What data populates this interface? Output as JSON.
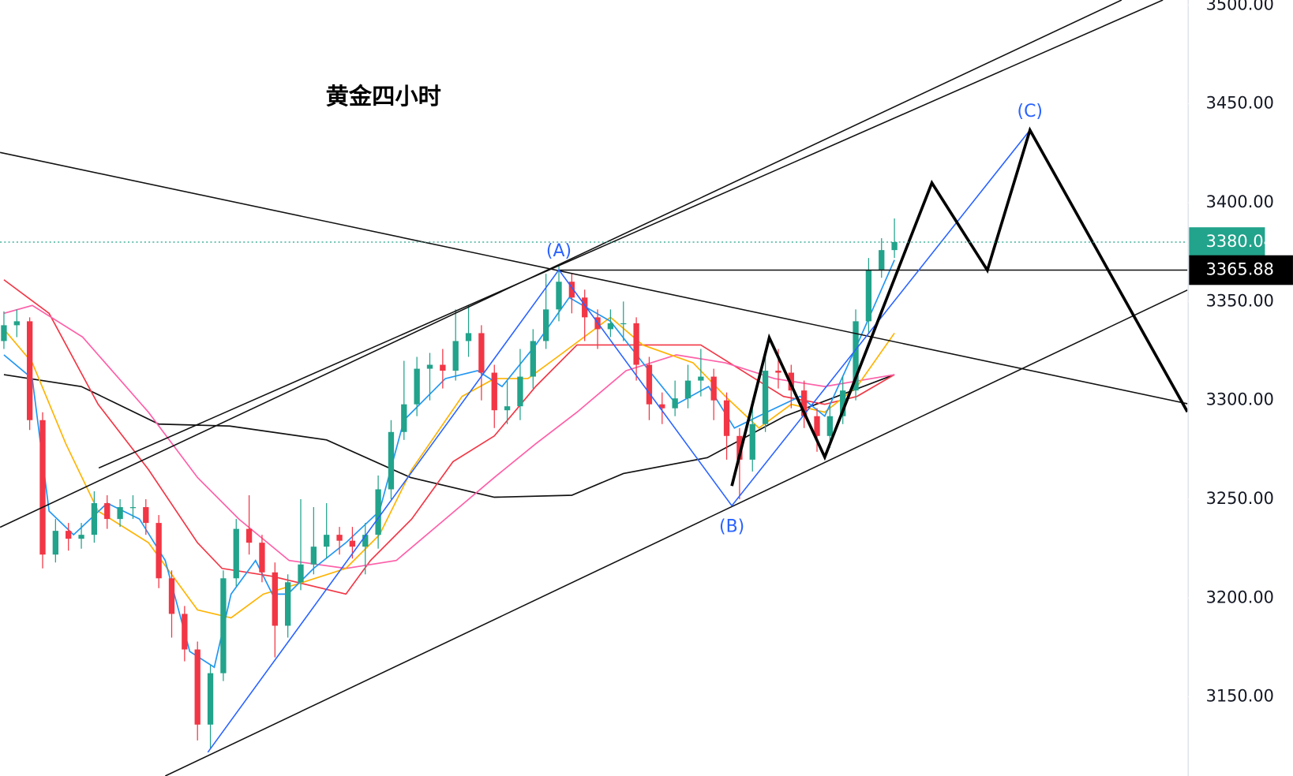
{
  "chart_data": {
    "type": "candlestick",
    "title": "黄金四小时",
    "ylim": [
      3110,
      3502.5
    ],
    "xlim": [
      -0.3,
      91.7
    ],
    "yticks": [
      {
        "value": 3150,
        "label": "3150.00"
      },
      {
        "value": 3200,
        "label": "3200.00"
      },
      {
        "value": 3250,
        "label": "3250.00"
      },
      {
        "value": 3300,
        "label": "3300.00"
      },
      {
        "value": 3350,
        "label": "3350.00"
      },
      {
        "value": 3400,
        "label": "3400.00"
      },
      {
        "value": 3450,
        "label": "3450.00"
      },
      {
        "value": 3500,
        "label": "3500.00"
      }
    ],
    "up_color": "#22a38b",
    "down_color": "#f23645",
    "candles": {
      "open": [
        3330,
        3338,
        3340,
        3290,
        3222,
        3234,
        3230,
        3232,
        3248,
        3240,
        3246,
        3246,
        3238,
        3210,
        3192,
        3174,
        3136,
        3162,
        3210,
        3235,
        3228,
        3213,
        3186,
        3208,
        3217,
        3226,
        3232,
        3229,
        3226,
        3232,
        3255,
        3284,
        3298,
        3316,
        3318,
        3315,
        3330,
        3334,
        3314,
        3295,
        3297,
        3312,
        3330,
        3346,
        3360,
        3352,
        3342,
        3336,
        3339,
        3339,
        3318,
        3298,
        3296,
        3301,
        3310,
        3312,
        3300,
        3282,
        3270,
        3288,
        3315,
        3314,
        3305,
        3292,
        3282,
        3292,
        3305,
        3340,
        3366,
        3376
      ],
      "high": [
        3345,
        3346,
        3342,
        3294,
        3240,
        3238,
        3238,
        3254,
        3252,
        3250,
        3252,
        3250,
        3242,
        3214,
        3196,
        3178,
        3166,
        3214,
        3240,
        3252,
        3232,
        3218,
        3212,
        3250,
        3246,
        3248,
        3236,
        3236,
        3238,
        3262,
        3290,
        3320,
        3322,
        3324,
        3326,
        3346,
        3348,
        3338,
        3318,
        3310,
        3326,
        3336,
        3364,
        3368,
        3364,
        3356,
        3346,
        3346,
        3350,
        3342,
        3322,
        3304,
        3310,
        3318,
        3326,
        3316,
        3304,
        3286,
        3300,
        3322,
        3326,
        3318,
        3310,
        3296,
        3298,
        3312,
        3346,
        3372,
        3382,
        3392
      ],
      "low": [
        3326,
        3332,
        3285,
        3215,
        3218,
        3224,
        3225,
        3228,
        3235,
        3236,
        3240,
        3232,
        3205,
        3180,
        3168,
        3128,
        3124,
        3158,
        3206,
        3222,
        3208,
        3170,
        3180,
        3204,
        3212,
        3220,
        3222,
        3220,
        3212,
        3225,
        3250,
        3280,
        3292,
        3300,
        3306,
        3310,
        3322,
        3300,
        3286,
        3288,
        3290,
        3306,
        3326,
        3340,
        3344,
        3330,
        3326,
        3332,
        3330,
        3310,
        3290,
        3288,
        3292,
        3296,
        3302,
        3290,
        3270,
        3250,
        3264,
        3284,
        3306,
        3296,
        3286,
        3274,
        3276,
        3288,
        3300,
        3334,
        3362,
        3372
      ],
      "close": [
        3338,
        3340,
        3290,
        3222,
        3234,
        3230,
        3232,
        3248,
        3240,
        3246,
        3246,
        3238,
        3210,
        3192,
        3174,
        3136,
        3162,
        3210,
        3235,
        3228,
        3213,
        3186,
        3208,
        3217,
        3226,
        3232,
        3229,
        3226,
        3232,
        3255,
        3284,
        3298,
        3316,
        3318,
        3315,
        3330,
        3334,
        3314,
        3295,
        3297,
        3312,
        3330,
        3346,
        3360,
        3352,
        3342,
        3336,
        3339,
        3339,
        3318,
        3298,
        3296,
        3301,
        3310,
        3312,
        3300,
        3282,
        3270,
        3288,
        3315,
        3314,
        3305,
        3292,
        3282,
        3292,
        3305,
        3340,
        3366,
        3376,
        3380.04
      ]
    },
    "series": [
      {
        "color": "#111111",
        "x": [
          0,
          6,
          12,
          17.5,
          25,
          31.5,
          38,
          44,
          48,
          54.5,
          60.5,
          69
        ],
        "values": [
          3313,
          3307,
          3288,
          3287,
          3280,
          3261,
          3251,
          3252,
          3263,
          3271,
          3292,
          3313
        ]
      },
      {
        "color": "#f23645",
        "x": [
          0,
          3.5,
          7.3,
          11.2,
          15,
          16.9,
          20.8,
          26.5,
          28.4,
          31.6,
          34.8,
          38,
          41.2,
          44.4,
          48.2,
          54,
          57.2,
          60.4,
          63.6,
          66.1,
          69
        ],
        "values": [
          3361,
          3344,
          3298,
          3265,
          3228,
          3215,
          3211,
          3202,
          3219,
          3240,
          3269,
          3282,
          3307,
          3328,
          3328,
          3328,
          3315,
          3302,
          3298,
          3302,
          3313
        ]
      },
      {
        "color": "#ff5fa8",
        "x": [
          0,
          2.2,
          6.1,
          11.2,
          15,
          18.2,
          22.1,
          26.5,
          30.4,
          34.2,
          38,
          41.2,
          44.4,
          48.2,
          52.1,
          55.9,
          59.7,
          63.6,
          69
        ],
        "values": [
          3344,
          3348,
          3332,
          3294,
          3261,
          3240,
          3219,
          3215,
          3219,
          3240,
          3261,
          3278,
          3294,
          3315,
          3323,
          3319,
          3311,
          3307,
          3313
        ]
      },
      {
        "color": "#ffb300",
        "x": [
          0,
          2.2,
          4.8,
          7.3,
          11.2,
          15,
          17.6,
          20.1,
          22.7,
          26.5,
          29.1,
          31.6,
          35.5,
          38,
          40.6,
          43.1,
          47,
          49.5,
          53.4,
          55.9,
          58.5,
          61,
          63.6,
          66.1,
          69
        ],
        "values": [
          3336,
          3319,
          3278,
          3244,
          3228,
          3194,
          3190,
          3202,
          3207,
          3215,
          3232,
          3265,
          3302,
          3311,
          3311,
          3323,
          3342,
          3328,
          3319,
          3302,
          3286,
          3298,
          3294,
          3307,
          3334
        ]
      },
      {
        "color": "#2196f3",
        "x": [
          0,
          2.2,
          3.5,
          5.4,
          8,
          10.5,
          12.5,
          14.4,
          16.3,
          17.6,
          19.5,
          20.8,
          22,
          24,
          26.5,
          29.1,
          31,
          34.2,
          36.7,
          38.6,
          41.2,
          43.8,
          47,
          49.5,
          52.1,
          54.6,
          56.6,
          59.1,
          61.7,
          63.6,
          66.1,
          69
        ],
        "values": [
          3323,
          3311,
          3244,
          3232,
          3248,
          3240,
          3219,
          3173,
          3165,
          3202,
          3219,
          3202,
          3202,
          3215,
          3228,
          3244,
          3290,
          3311,
          3315,
          3307,
          3328,
          3352,
          3340,
          3319,
          3298,
          3307,
          3286,
          3294,
          3302,
          3292,
          3328,
          3371
        ]
      }
    ],
    "drawings": [
      {
        "color": "#111111",
        "width": 1.5,
        "x": [
          -0.3,
          91.7
        ],
        "values": [
          3425.4,
          3298.3
        ]
      },
      {
        "color": "#111111",
        "width": 1.5,
        "x": [
          -0.3,
          86.6
        ],
        "values": [
          3235.8,
          3502.5
        ]
      },
      {
        "color": "#111111",
        "width": 1.5,
        "x": [
          7.35,
          89.8
        ],
        "values": [
          3265.8,
          3502.5
        ]
      },
      {
        "color": "#111111",
        "width": 1.5,
        "x": [
          12.5,
          91.7
        ],
        "values": [
          3110,
          3355.8
        ]
      },
      {
        "color": "#111111",
        "width": 1.5,
        "x": [
          43,
          91.7
        ],
        "values": [
          3365.88,
          3365.88
        ]
      },
      {
        "color": "#2962ff",
        "width": 1.5,
        "x": [
          15.8,
          43,
          56.4,
          79.5
        ],
        "values": [
          3122,
          3366,
          3246.7,
          3436.7
        ],
        "labels": [
          null,
          "(A)",
          "(B)",
          "(C)"
        ]
      },
      {
        "color": "#000000",
        "width": 3.5,
        "x": [
          56.4,
          59.3,
          63.6,
          71.9,
          76.2,
          79.5,
          91.7
        ],
        "values": [
          3256.7,
          3331.7,
          3271.3,
          3410,
          3365.8,
          3436.7,
          3294.2
        ]
      }
    ],
    "last_price": 3380.04,
    "last_price_color": "#22a38b",
    "level_price": 3365.88
  }
}
